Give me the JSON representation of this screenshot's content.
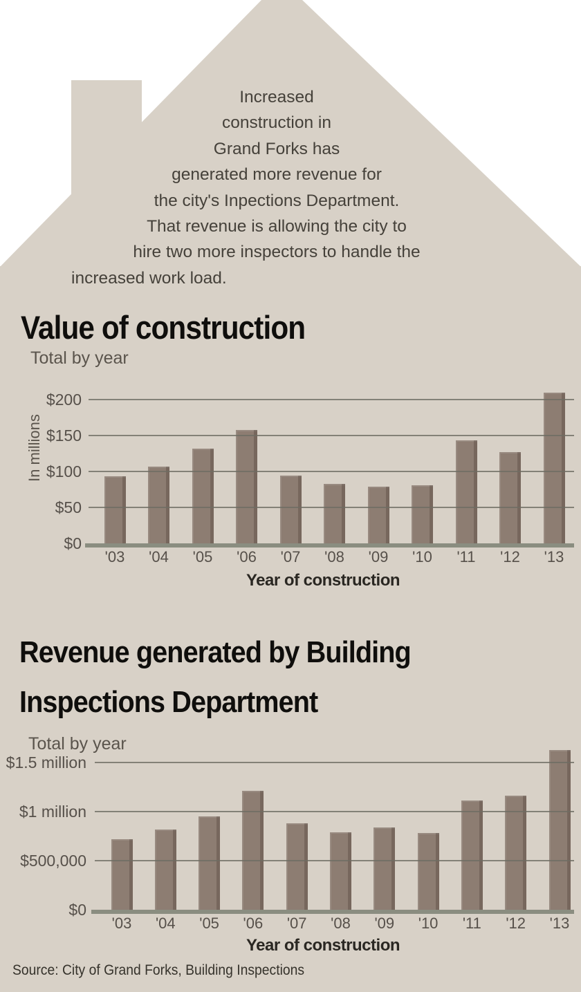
{
  "colors": {
    "house": "#d8d1c7",
    "bar": "#8d7d72",
    "grid": "#6e6d63",
    "baseline": "#8a8d80"
  },
  "intro": {
    "lines": [
      "Increased",
      "construction in",
      "Grand Forks has",
      "generated more revenue for",
      "the city's Inpections Department.",
      "That revenue is allowing the city to",
      "hire two more inspectors to handle the",
      "increased work load."
    ]
  },
  "chart_data": [
    {
      "type": "bar",
      "title": "Value of construction",
      "subtitle": "Total by year",
      "ylabel": "In millions",
      "xlabel": "Year of construction",
      "categories": [
        "'03",
        "'04",
        "'05",
        "'06",
        "'07",
        "'08",
        "'09",
        "'10",
        "'11",
        "'12",
        "'13"
      ],
      "values": [
        93,
        107,
        132,
        158,
        94,
        83,
        79,
        81,
        144,
        127,
        210
      ],
      "unit": "million USD",
      "ytick_labels": [
        "$0",
        "$50",
        "$100",
        "$150",
        "$200"
      ],
      "ylim": [
        0,
        215
      ],
      "grid": true,
      "legend": false
    },
    {
      "type": "bar",
      "title": "Revenue generated by Building Inspections Department",
      "title_lines": [
        "Revenue generated by Building",
        "Inspections Department"
      ],
      "subtitle": "Total by year",
      "xlabel": "Year of construction",
      "categories": [
        "'03",
        "'04",
        "'05",
        "'06",
        "'07",
        "'08",
        "'09",
        "'10",
        "'11",
        "'12",
        "'13"
      ],
      "values": [
        720000,
        820000,
        950000,
        1210000,
        880000,
        790000,
        840000,
        780000,
        1110000,
        1160000,
        1630000
      ],
      "unit": "USD",
      "ytick_labels": [
        "$0",
        "$500,000",
        "$1 million",
        "$1.5 million"
      ],
      "ylim": [
        0,
        1700000
      ],
      "grid": true,
      "legend": false
    }
  ],
  "source": "Source: City of Grand Forks, Building Inspections"
}
